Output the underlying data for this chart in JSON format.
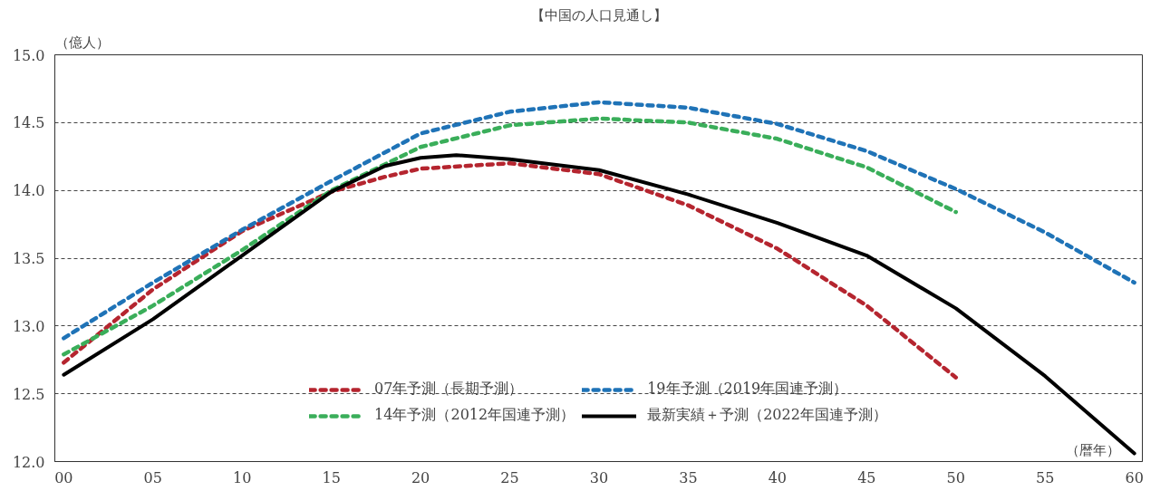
{
  "chart_data": {
    "type": "line",
    "title": "【中国の人口見通し】",
    "ylabel": "（億人）",
    "xlabel": "（暦年）",
    "xlim": [
      1999.5,
      2060.45
    ],
    "ylim": [
      12,
      15
    ],
    "xticks": [
      {
        "value": 2000,
        "label": "00"
      },
      {
        "value": 2005,
        "label": "05"
      },
      {
        "value": 2010,
        "label": "10"
      },
      {
        "value": 2015,
        "label": "15"
      },
      {
        "value": 2020,
        "label": "20"
      },
      {
        "value": 2025,
        "label": "25"
      },
      {
        "value": 2030,
        "label": "30"
      },
      {
        "value": 2035,
        "label": "35"
      },
      {
        "value": 2040,
        "label": "40"
      },
      {
        "value": 2045,
        "label": "45"
      },
      {
        "value": 2050,
        "label": "50"
      },
      {
        "value": 2055,
        "label": "55"
      },
      {
        "value": 2060,
        "label": "60"
      }
    ],
    "yticks": [
      {
        "value": 12,
        "label": "12.0"
      },
      12.5,
      {
        "value": 13,
        "label": "13.0"
      },
      13.5,
      {
        "value": 14,
        "label": "14.0"
      },
      14.5,
      {
        "value": 15,
        "label": "15.0"
      }
    ],
    "grid": "y",
    "legend": "bottom",
    "marker": "none",
    "series": [
      {
        "name": "07年予測（長期予測）",
        "color": "#b5252f",
        "line_style": "dashed",
        "x": [
          2000,
          2005,
          2010,
          2015,
          2018,
          2020,
          2025,
          2030,
          2035,
          2040,
          2045,
          2050
        ],
        "values": [
          12.73,
          13.27,
          13.7,
          13.99,
          14.1,
          14.16,
          14.2,
          14.12,
          13.89,
          13.57,
          13.15,
          12.62
        ]
      },
      {
        "name": "14年予測（2012年国連予測）",
        "color": "#3aae5a",
        "line_style": "dashed",
        "x": [
          2000,
          2005,
          2010,
          2015,
          2020,
          2025,
          2030,
          2035,
          2040,
          2045,
          2050
        ],
        "values": [
          12.79,
          13.15,
          13.56,
          14.0,
          14.32,
          14.48,
          14.53,
          14.5,
          14.38,
          14.17,
          13.84
        ]
      },
      {
        "name": "19年予測（2019年国連予測）",
        "color": "#1f73b7",
        "line_style": "dashed",
        "x": [
          2000,
          2005,
          2010,
          2015,
          2020,
          2025,
          2030,
          2035,
          2040,
          2045,
          2050,
          2055,
          2060
        ],
        "values": [
          12.91,
          13.32,
          13.71,
          14.07,
          14.42,
          14.58,
          14.65,
          14.61,
          14.49,
          14.29,
          14.01,
          13.69,
          13.32
        ]
      },
      {
        "name": "最新実績＋予測（2022年国連予測）",
        "color": "#000000",
        "line_style": "solid",
        "x": [
          2000,
          2005,
          2010,
          2015,
          2018,
          2020,
          2022,
          2025,
          2030,
          2035,
          2040,
          2045,
          2050,
          2055,
          2060
        ],
        "values": [
          12.64,
          13.05,
          13.52,
          13.99,
          14.18,
          14.24,
          14.26,
          14.23,
          14.15,
          13.97,
          13.76,
          13.52,
          13.13,
          12.63,
          12.06
        ]
      }
    ]
  }
}
